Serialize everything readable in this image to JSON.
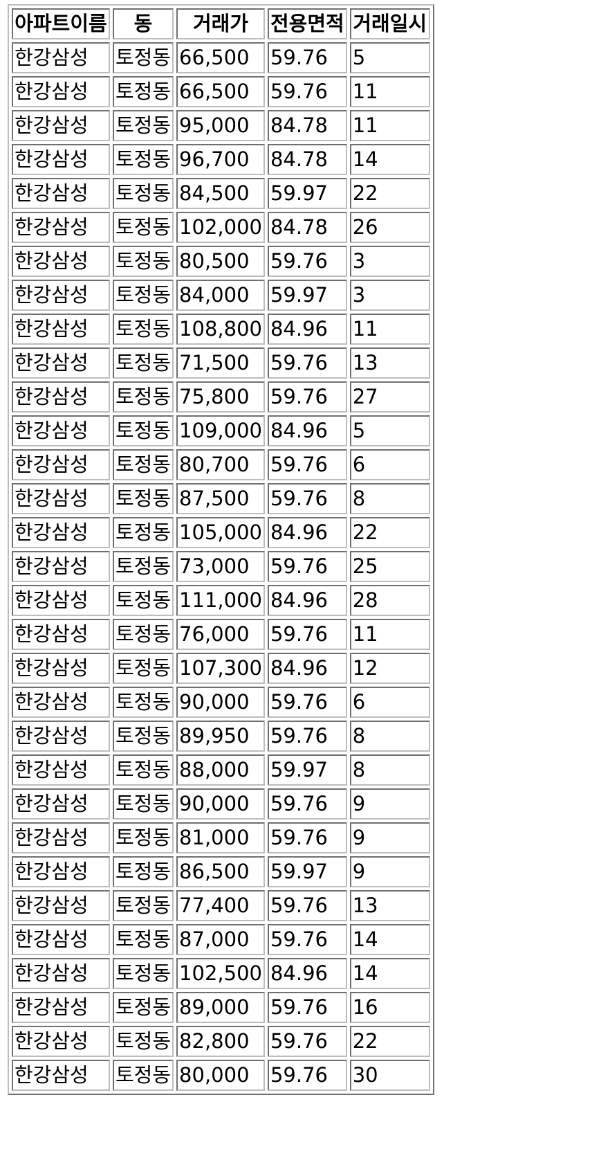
{
  "table": {
    "headers": [
      "아파트이름",
      "동",
      "거래가",
      "전용면적",
      "거래일시"
    ],
    "rows": [
      [
        "한강삼성",
        "토정동",
        "66,500",
        "59.76",
        "5"
      ],
      [
        "한강삼성",
        "토정동",
        "66,500",
        "59.76",
        "11"
      ],
      [
        "한강삼성",
        "토정동",
        "95,000",
        "84.78",
        "11"
      ],
      [
        "한강삼성",
        "토정동",
        "96,700",
        "84.78",
        "14"
      ],
      [
        "한강삼성",
        "토정동",
        "84,500",
        "59.97",
        "22"
      ],
      [
        "한강삼성",
        "토정동",
        "102,000",
        "84.78",
        "26"
      ],
      [
        "한강삼성",
        "토정동",
        "80,500",
        "59.76",
        "3"
      ],
      [
        "한강삼성",
        "토정동",
        "84,000",
        "59.97",
        "3"
      ],
      [
        "한강삼성",
        "토정동",
        "108,800",
        "84.96",
        "11"
      ],
      [
        "한강삼성",
        "토정동",
        "71,500",
        "59.76",
        "13"
      ],
      [
        "한강삼성",
        "토정동",
        "75,800",
        "59.76",
        "27"
      ],
      [
        "한강삼성",
        "토정동",
        "109,000",
        "84.96",
        "5"
      ],
      [
        "한강삼성",
        "토정동",
        "80,700",
        "59.76",
        "6"
      ],
      [
        "한강삼성",
        "토정동",
        "87,500",
        "59.76",
        "8"
      ],
      [
        "한강삼성",
        "토정동",
        "105,000",
        "84.96",
        "22"
      ],
      [
        "한강삼성",
        "토정동",
        "73,000",
        "59.76",
        "25"
      ],
      [
        "한강삼성",
        "토정동",
        "111,000",
        "84.96",
        "28"
      ],
      [
        "한강삼성",
        "토정동",
        "76,000",
        "59.76",
        "11"
      ],
      [
        "한강삼성",
        "토정동",
        "107,300",
        "84.96",
        "12"
      ],
      [
        "한강삼성",
        "토정동",
        "90,000",
        "59.76",
        "6"
      ],
      [
        "한강삼성",
        "토정동",
        "89,950",
        "59.76",
        "8"
      ],
      [
        "한강삼성",
        "토정동",
        "88,000",
        "59.97",
        "8"
      ],
      [
        "한강삼성",
        "토정동",
        "90,000",
        "59.76",
        "9"
      ],
      [
        "한강삼성",
        "토정동",
        "81,000",
        "59.76",
        "9"
      ],
      [
        "한강삼성",
        "토정동",
        "86,500",
        "59.97",
        "9"
      ],
      [
        "한강삼성",
        "토정동",
        "77,400",
        "59.76",
        "13"
      ],
      [
        "한강삼성",
        "토정동",
        "87,000",
        "59.76",
        "14"
      ],
      [
        "한강삼성",
        "토정동",
        "102,500",
        "84.96",
        "14"
      ],
      [
        "한강삼성",
        "토정동",
        "89,000",
        "59.76",
        "16"
      ],
      [
        "한강삼성",
        "토정동",
        "82,800",
        "59.76",
        "22"
      ],
      [
        "한강삼성",
        "토정동",
        "80,000",
        "59.76",
        "30"
      ]
    ]
  }
}
